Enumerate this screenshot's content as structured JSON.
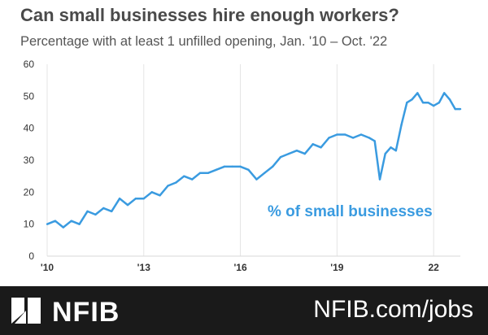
{
  "chart_data": {
    "type": "line",
    "title": "Can small businesses hire enough workers?",
    "subtitle": "Percentage with at least 1 unfilled opening, Jan. '10 –  Oct. '22",
    "annotation": "% of small businesses",
    "xlabel": "",
    "ylabel": "",
    "ylim": [
      0,
      60
    ],
    "yticks": [
      0,
      10,
      20,
      30,
      40,
      50,
      60
    ],
    "xlim": [
      2010.0,
      2022.83
    ],
    "xticks": [
      {
        "value": 2010,
        "label": "'10"
      },
      {
        "value": 2013,
        "label": "'13"
      },
      {
        "value": 2016,
        "label": "'16"
      },
      {
        "value": 2019,
        "label": "'19"
      },
      {
        "value": 2022,
        "label": "22"
      }
    ],
    "grid": "vertical",
    "color": "#3a9be0",
    "series": [
      {
        "name": "",
        "x": [
          2010.0,
          2010.25,
          2010.5,
          2010.75,
          2011.0,
          2011.25,
          2011.5,
          2011.75,
          2012.0,
          2012.25,
          2012.5,
          2012.75,
          2013.0,
          2013.25,
          2013.5,
          2013.75,
          2014.0,
          2014.25,
          2014.5,
          2014.75,
          2015.0,
          2015.25,
          2015.5,
          2015.75,
          2016.0,
          2016.25,
          2016.5,
          2016.75,
          2017.0,
          2017.25,
          2017.5,
          2017.75,
          2018.0,
          2018.25,
          2018.5,
          2018.75,
          2019.0,
          2019.25,
          2019.5,
          2019.75,
          2020.0,
          2020.17,
          2020.33,
          2020.5,
          2020.67,
          2020.83,
          2021.0,
          2021.17,
          2021.33,
          2021.5,
          2021.67,
          2021.83,
          2022.0,
          2022.17,
          2022.33,
          2022.5,
          2022.67,
          2022.83
        ],
        "values": [
          10,
          11,
          9,
          11,
          10,
          14,
          13,
          15,
          14,
          18,
          16,
          18,
          18,
          20,
          19,
          22,
          23,
          25,
          24,
          26,
          26,
          27,
          28,
          28,
          28,
          27,
          24,
          26,
          28,
          31,
          32,
          33,
          32,
          35,
          34,
          37,
          38,
          38,
          37,
          38,
          37,
          36,
          24,
          32,
          34,
          33,
          41,
          48,
          49,
          51,
          48,
          48,
          47,
          48,
          51,
          49,
          46,
          46
        ]
      }
    ]
  },
  "footer": {
    "brand": "NFIB",
    "url": "NFIB.com/jobs",
    "background": "#1a1a1a"
  }
}
